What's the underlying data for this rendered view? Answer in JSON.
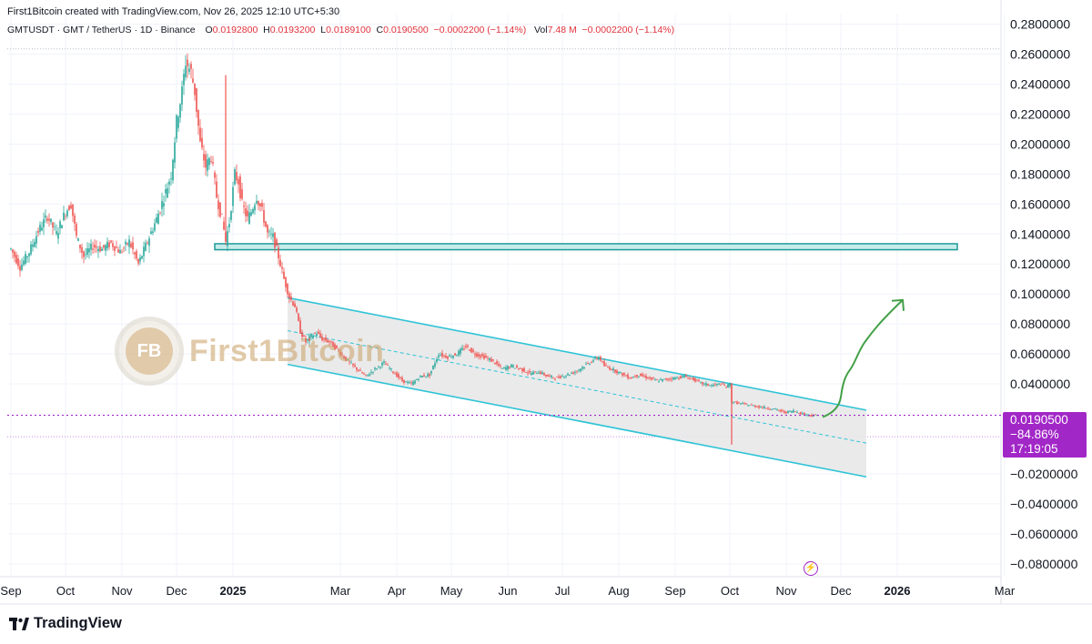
{
  "header": {
    "credit": "First1Bitcoin created with TradingView.com, Nov 26, 2025 12:10 UTC+5:30",
    "symbol": "GMTUSDT · GMT / TetherUS · 1D · Binance",
    "o_label": "O",
    "o_value": "0.0192800",
    "h_label": "H",
    "h_value": "0.0193200",
    "l_label": "L",
    "l_value": "0.0189100",
    "c_label": "C",
    "c_value": "0.0190500",
    "change": "−0.0002200 (−1.14%)",
    "vol_label": "Vol",
    "vol_value": "7.48 M",
    "vol_change": "−0.0002200 (−1.14%)"
  },
  "price_badge": {
    "price": "0.0190500",
    "change_pct": "−84.86%",
    "countdown": "17:19:05"
  },
  "watermark": {
    "monogram": "FB",
    "text": "First1Bitcoin"
  },
  "footer": {
    "brand": "TradingView"
  },
  "colors": {
    "up": "#26a69a",
    "down": "#ef5350",
    "channel": "#2ec4d6",
    "zone": "#1e9b98",
    "arrow": "#43a047",
    "price_line": "#a227c7"
  },
  "chart_data": {
    "type": "candlestick",
    "symbol": "GMTUSDT",
    "interval": "1D",
    "y_ticks": [
      0.28,
      0.26,
      0.24,
      0.22,
      0.2,
      0.18,
      0.16,
      0.14,
      0.12,
      0.1,
      0.08,
      0.06,
      0.04,
      0.02,
      -0.02,
      -0.04,
      -0.06,
      -0.08
    ],
    "y_tick_labels": [
      "0.2800000",
      "0.2600000",
      "0.2400000",
      "0.2200000",
      "0.2000000",
      "0.1800000",
      "0.1600000",
      "0.1400000",
      "0.1200000",
      "0.1000000",
      "0.0800000",
      "0.0600000",
      "0.0400000",
      "",
      "−0.0200000",
      "−0.0400000",
      "−0.0600000",
      "−0.0800000"
    ],
    "ylim": [
      -0.088,
      0.287
    ],
    "x_ticks": [
      {
        "label": "Sep",
        "day": 0,
        "bold": false
      },
      {
        "label": "Oct",
        "day": 30,
        "bold": false
      },
      {
        "label": "Nov",
        "day": 61,
        "bold": false
      },
      {
        "label": "Dec",
        "day": 91,
        "bold": false
      },
      {
        "label": "2025",
        "day": 122,
        "bold": true
      },
      {
        "label": "Mar",
        "day": 181,
        "bold": false
      },
      {
        "label": "Apr",
        "day": 212,
        "bold": false
      },
      {
        "label": "May",
        "day": 242,
        "bold": false
      },
      {
        "label": "Jun",
        "day": 273,
        "bold": false
      },
      {
        "label": "Jul",
        "day": 303,
        "bold": false
      },
      {
        "label": "Aug",
        "day": 334,
        "bold": false
      },
      {
        "label": "Sep",
        "day": 365,
        "bold": false
      },
      {
        "label": "Oct",
        "day": 395,
        "bold": false
      },
      {
        "label": "Nov",
        "day": 426,
        "bold": false
      },
      {
        "label": "Dec",
        "day": 456,
        "bold": false
      },
      {
        "label": "2026",
        "day": 487,
        "bold": true
      },
      {
        "label": "Mar",
        "day": 546,
        "bold": false
      }
    ],
    "price_path": [
      [
        0,
        0.13
      ],
      [
        5,
        0.118
      ],
      [
        10,
        0.128
      ],
      [
        15,
        0.142
      ],
      [
        20,
        0.152
      ],
      [
        25,
        0.14
      ],
      [
        30,
        0.155
      ],
      [
        33,
        0.16
      ],
      [
        36,
        0.138
      ],
      [
        40,
        0.125
      ],
      [
        45,
        0.132
      ],
      [
        50,
        0.13
      ],
      [
        55,
        0.134
      ],
      [
        60,
        0.128
      ],
      [
        65,
        0.135
      ],
      [
        70,
        0.12
      ],
      [
        75,
        0.135
      ],
      [
        80,
        0.15
      ],
      [
        85,
        0.168
      ],
      [
        88,
        0.18
      ],
      [
        91,
        0.215
      ],
      [
        94,
        0.235
      ],
      [
        96,
        0.255
      ],
      [
        99,
        0.248
      ],
      [
        101,
        0.235
      ],
      [
        104,
        0.2
      ],
      [
        107,
        0.185
      ],
      [
        110,
        0.192
      ],
      [
        113,
        0.165
      ],
      [
        116,
        0.15
      ],
      [
        118,
        0.135
      ],
      [
        120,
        0.148
      ],
      [
        123,
        0.18
      ],
      [
        125,
        0.175
      ],
      [
        127,
        0.16
      ],
      [
        130,
        0.15
      ],
      [
        132,
        0.155
      ],
      [
        135,
        0.165
      ],
      [
        138,
        0.155
      ],
      [
        141,
        0.14
      ],
      [
        144,
        0.138
      ],
      [
        147,
        0.125
      ],
      [
        150,
        0.11
      ],
      [
        153,
        0.098
      ],
      [
        156,
        0.092
      ],
      [
        159,
        0.075
      ],
      [
        162,
        0.068
      ],
      [
        165,
        0.072
      ],
      [
        168,
        0.074
      ],
      [
        171,
        0.07
      ],
      [
        175,
        0.068
      ],
      [
        180,
        0.062
      ],
      [
        185,
        0.055
      ],
      [
        190,
        0.05
      ],
      [
        195,
        0.045
      ],
      [
        200,
        0.05
      ],
      [
        205,
        0.054
      ],
      [
        210,
        0.048
      ],
      [
        215,
        0.042
      ],
      [
        220,
        0.04
      ],
      [
        225,
        0.045
      ],
      [
        230,
        0.046
      ],
      [
        235,
        0.06
      ],
      [
        240,
        0.058
      ],
      [
        245,
        0.06
      ],
      [
        250,
        0.065
      ],
      [
        255,
        0.06
      ],
      [
        260,
        0.058
      ],
      [
        265,
        0.055
      ],
      [
        270,
        0.05
      ],
      [
        275,
        0.052
      ],
      [
        280,
        0.05
      ],
      [
        285,
        0.047
      ],
      [
        290,
        0.048
      ],
      [
        295,
        0.045
      ],
      [
        300,
        0.044
      ],
      [
        305,
        0.046
      ],
      [
        310,
        0.048
      ],
      [
        315,
        0.052
      ],
      [
        320,
        0.056
      ],
      [
        323,
        0.058
      ],
      [
        326,
        0.052
      ],
      [
        330,
        0.05
      ],
      [
        335,
        0.047
      ],
      [
        340,
        0.044
      ],
      [
        345,
        0.046
      ],
      [
        350,
        0.044
      ],
      [
        355,
        0.042
      ],
      [
        360,
        0.043
      ],
      [
        365,
        0.044
      ],
      [
        370,
        0.045
      ],
      [
        375,
        0.043
      ],
      [
        380,
        0.04
      ],
      [
        385,
        0.039
      ],
      [
        390,
        0.04
      ],
      [
        393,
        0.038
      ],
      [
        395,
        0.04
      ],
      [
        396,
        0.028
      ],
      [
        400,
        0.027
      ],
      [
        405,
        0.026
      ],
      [
        410,
        0.025
      ],
      [
        415,
        0.024
      ],
      [
        420,
        0.023
      ],
      [
        425,
        0.021
      ],
      [
        430,
        0.022
      ],
      [
        435,
        0.02
      ],
      [
        440,
        0.019
      ],
      [
        443,
        0.019
      ]
    ],
    "spikes": [
      {
        "day": 118,
        "high": 0.246
      },
      {
        "day": 396,
        "low": -0.0005
      },
      {
        "day": 164,
        "high": 0.0685
      }
    ],
    "resistance_zone": {
      "day_start": 112,
      "day_end": 520,
      "top": 0.1335,
      "bottom": 0.1295
    },
    "channel": {
      "upper": [
        [
          152,
          0.0975
        ],
        [
          470,
          0.0225
        ]
      ],
      "lower": [
        [
          152,
          0.053
        ],
        [
          470,
          -0.022
        ]
      ],
      "mid": [
        [
          152,
          0.0755
        ],
        [
          470,
          0.0005
        ]
      ]
    },
    "current_price": 0.01905,
    "reference_level": 0.0048,
    "peak_level": 0.2635,
    "projection_target": {
      "day": 490,
      "price": 0.096
    }
  }
}
